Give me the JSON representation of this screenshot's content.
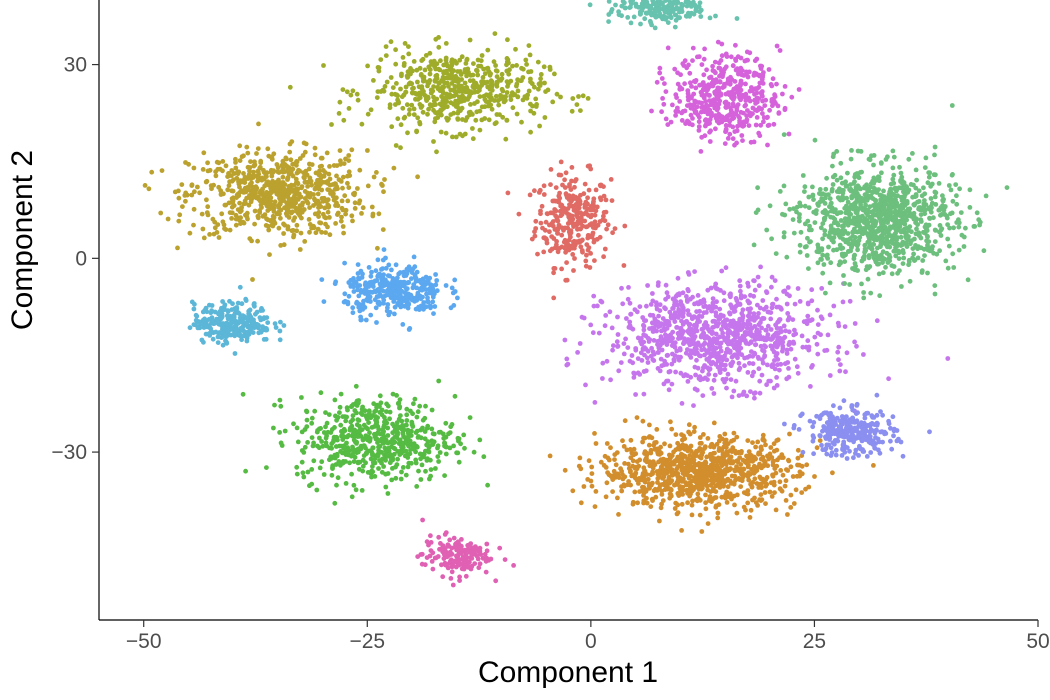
{
  "chart_data": {
    "type": "scatter",
    "title": "",
    "xlabel": "Component 1",
    "ylabel": "Component 2",
    "xlim": [
      -55,
      50
    ],
    "ylim": [
      -56,
      40
    ],
    "xticks": [
      -50,
      -25,
      0,
      25,
      50
    ],
    "xtick_labels": [
      "−50",
      "−25",
      "0",
      "25",
      "50"
    ],
    "yticks": [
      -30,
      0,
      30
    ],
    "ytick_labels": [
      "−30",
      "0",
      "30"
    ],
    "grid": false,
    "legend": "none",
    "point_colors": [
      "#D89000",
      "#C09B00",
      "#7CAE00",
      "#39B600",
      "#00BB4E",
      "#00BFC4",
      "#00A9FF",
      "#9590FF",
      "#E76BF3",
      "#FF62BC"
    ],
    "clusters": [
      {
        "color": "#E06B65",
        "center": [
          -2,
          6
        ],
        "spread": [
          3.8,
          6.5
        ],
        "n": 300
      },
      {
        "color": "#BBA12E",
        "center": [
          -35,
          10
        ],
        "spread": [
          9,
          6
        ],
        "n": 700
      },
      {
        "color": "#9EAC2A",
        "center": [
          -15,
          26
        ],
        "spread": [
          9,
          5.5
        ],
        "n": 550
      },
      {
        "color": "#55BB42",
        "center": [
          -24,
          -28
        ],
        "spread": [
          8,
          6
        ],
        "n": 560
      },
      {
        "color": "#E060B3",
        "center": [
          -15,
          -46
        ],
        "spread": [
          3.5,
          2.8
        ],
        "n": 160
      },
      {
        "color": "#5BB6D7",
        "center": [
          -40,
          -10
        ],
        "spread": [
          4,
          2.8
        ],
        "n": 270
      },
      {
        "color": "#5BA8F0",
        "center": [
          -22,
          -5
        ],
        "spread": [
          5,
          3.5
        ],
        "n": 340
      },
      {
        "color": "#C676EC",
        "center": [
          14,
          -12
        ],
        "spread": [
          11,
          7
        ],
        "n": 950
      },
      {
        "color": "#D28E2C",
        "center": [
          12,
          -33
        ],
        "spread": [
          10,
          5
        ],
        "n": 900
      },
      {
        "color": "#8B8FF0",
        "center": [
          29,
          -27
        ],
        "spread": [
          4.5,
          3.2
        ],
        "n": 300
      },
      {
        "color": "#6CBF7C",
        "center": [
          32,
          6
        ],
        "spread": [
          8,
          7.5
        ],
        "n": 1000
      },
      {
        "color": "#D562DB",
        "center": [
          15,
          25
        ],
        "spread": [
          5.5,
          6
        ],
        "n": 450
      },
      {
        "color": "#67C2AE",
        "center": [
          8,
          39
        ],
        "spread": [
          5,
          2.5
        ],
        "n": 230
      }
    ]
  }
}
